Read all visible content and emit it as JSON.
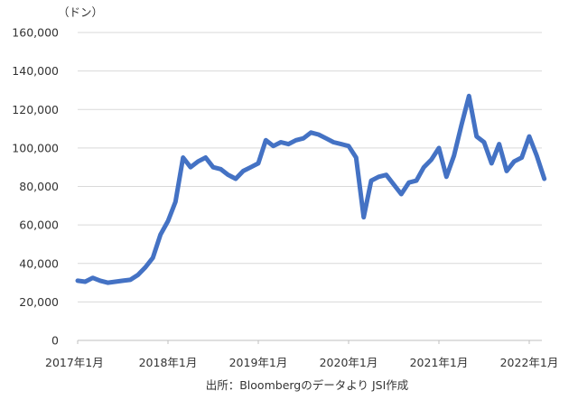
{
  "chart_data": {
    "type": "line",
    "unit_label": "（ドン）",
    "source_note": "出所：Bloombergのデータより JSI作成",
    "ylim": [
      0,
      160000
    ],
    "y_ticks": [
      0,
      20000,
      40000,
      60000,
      80000,
      100000,
      120000,
      140000,
      160000
    ],
    "y_tick_labels": [
      "0",
      "20,000",
      "40,000",
      "60,000",
      "80,000",
      "100,000",
      "120,000",
      "140,000",
      "160,000"
    ],
    "x_tick_labels": [
      "2017年1月",
      "2018年1月",
      "2019年1月",
      "2020年1月",
      "2021年1月",
      "2022年1月"
    ],
    "x_start": "2017-01",
    "x_end": "2022-03",
    "grid": true,
    "series": [
      {
        "color": "#4472c4",
        "points": [
          [
            "2017-01",
            31000
          ],
          [
            "2017-02",
            30500
          ],
          [
            "2017-03",
            32500
          ],
          [
            "2017-04",
            31000
          ],
          [
            "2017-05",
            30000
          ],
          [
            "2017-06",
            30500
          ],
          [
            "2017-07",
            31000
          ],
          [
            "2017-08",
            31500
          ],
          [
            "2017-09",
            34000
          ],
          [
            "2017-10",
            38000
          ],
          [
            "2017-11",
            43000
          ],
          [
            "2017-12",
            55000
          ],
          [
            "2018-01",
            62000
          ],
          [
            "2018-02",
            72000
          ],
          [
            "2018-03",
            95000
          ],
          [
            "2018-04",
            90000
          ],
          [
            "2018-05",
            93000
          ],
          [
            "2018-06",
            95000
          ],
          [
            "2018-07",
            90000
          ],
          [
            "2018-08",
            89000
          ],
          [
            "2018-09",
            86000
          ],
          [
            "2018-10",
            84000
          ],
          [
            "2018-11",
            88000
          ],
          [
            "2018-12",
            90000
          ],
          [
            "2019-01",
            92000
          ],
          [
            "2019-02",
            104000
          ],
          [
            "2019-03",
            101000
          ],
          [
            "2019-04",
            103000
          ],
          [
            "2019-05",
            102000
          ],
          [
            "2019-06",
            104000
          ],
          [
            "2019-07",
            105000
          ],
          [
            "2019-08",
            108000
          ],
          [
            "2019-09",
            107000
          ],
          [
            "2019-10",
            105000
          ],
          [
            "2019-11",
            103000
          ],
          [
            "2019-12",
            102000
          ],
          [
            "2020-01",
            101000
          ],
          [
            "2020-02",
            95000
          ],
          [
            "2020-03",
            64000
          ],
          [
            "2020-04",
            83000
          ],
          [
            "2020-05",
            85000
          ],
          [
            "2020-06",
            86000
          ],
          [
            "2020-07",
            81000
          ],
          [
            "2020-08",
            76000
          ],
          [
            "2020-09",
            82000
          ],
          [
            "2020-10",
            83000
          ],
          [
            "2020-11",
            90000
          ],
          [
            "2020-12",
            94000
          ],
          [
            "2021-01",
            100000
          ],
          [
            "2021-02",
            85000
          ],
          [
            "2021-03",
            96000
          ],
          [
            "2021-04",
            112000
          ],
          [
            "2021-05",
            127000
          ],
          [
            "2021-06",
            106000
          ],
          [
            "2021-07",
            103000
          ],
          [
            "2021-08",
            92000
          ],
          [
            "2021-09",
            102000
          ],
          [
            "2021-10",
            88000
          ],
          [
            "2021-11",
            93000
          ],
          [
            "2021-12",
            95000
          ],
          [
            "2022-01",
            106000
          ],
          [
            "2022-02",
            96000
          ],
          [
            "2022-03",
            84000
          ]
        ]
      }
    ]
  }
}
